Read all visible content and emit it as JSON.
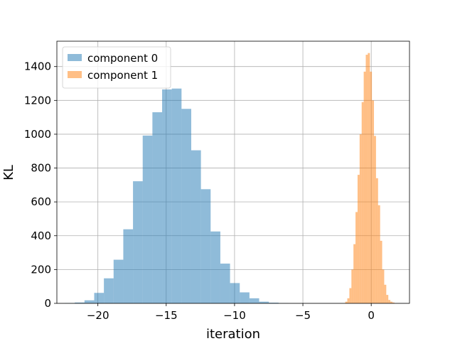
{
  "chart_data": {
    "type": "histogram",
    "title": "",
    "xlabel": "iteration",
    "ylabel": "KL",
    "xlim": [
      -23.0,
      2.8
    ],
    "ylim": [
      0,
      1550
    ],
    "xticks": [
      -20,
      -15,
      -10,
      -5,
      0
    ],
    "xtick_labels": [
      "−20",
      "−15",
      "−10",
      "−5",
      "0"
    ],
    "yticks": [
      0,
      200,
      400,
      600,
      800,
      1000,
      1200,
      1400
    ],
    "ytick_labels": [
      "0",
      "200",
      "400",
      "600",
      "800",
      "1000",
      "1200",
      "1400"
    ],
    "grid": true,
    "legend_position": "top-left",
    "series": [
      {
        "name": "component 0",
        "color": "#1f77b4",
        "alpha": 0.5,
        "bin_edges": [
          -22.4,
          -21.69,
          -20.98,
          -20.27,
          -19.56,
          -18.85,
          -18.14,
          -17.43,
          -16.72,
          -16.01,
          -15.3,
          -14.59,
          -13.88,
          -13.17,
          -12.46,
          -11.75,
          -11.04,
          -10.33,
          -9.62,
          -8.91,
          -8.2,
          -7.49,
          -6.78,
          -6.07
        ],
        "counts": [
          2,
          5,
          18,
          62,
          148,
          258,
          438,
          722,
          992,
          1130,
          1265,
          1270,
          1150,
          905,
          675,
          425,
          235,
          120,
          65,
          30,
          10,
          4,
          1
        ]
      },
      {
        "name": "component 1",
        "color": "#ff7f0e",
        "alpha": 0.5,
        "bin_edges": [
          -1.9,
          -1.75,
          -1.6,
          -1.45,
          -1.3,
          -1.15,
          -1.0,
          -0.85,
          -0.7,
          -0.55,
          -0.4,
          -0.25,
          -0.1,
          0.05,
          0.2,
          0.35,
          0.5,
          0.65,
          0.8,
          0.95,
          1.1,
          1.25,
          1.4,
          1.55,
          1.7
        ],
        "counts": [
          10,
          30,
          90,
          200,
          350,
          540,
          760,
          1000,
          1190,
          1370,
          1470,
          1480,
          1370,
          1200,
          990,
          740,
          580,
          370,
          200,
          110,
          50,
          20,
          10,
          5
        ]
      }
    ]
  }
}
